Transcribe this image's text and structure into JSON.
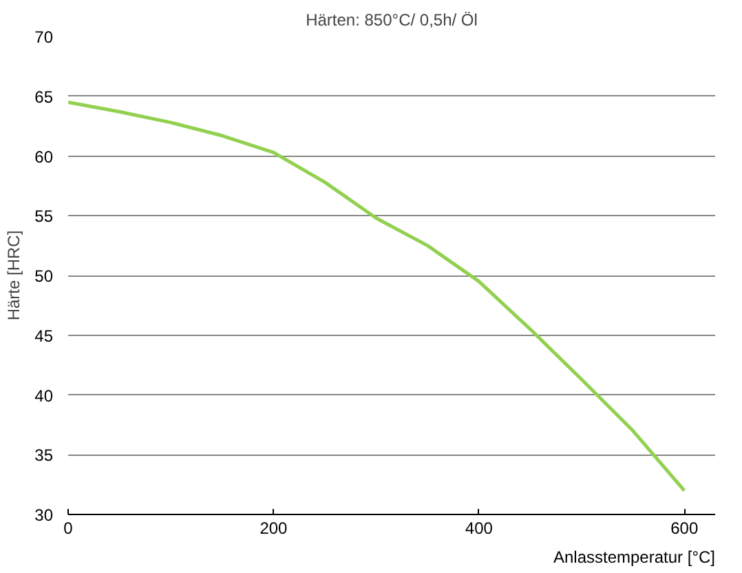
{
  "chart_data": {
    "type": "line",
    "title": "Härten: 850°C/ 0,5h/ Öl",
    "xlabel": "Anlasstemperatur [°C]",
    "ylabel": "Härte [HRC]",
    "series": [
      {
        "color": "#92d050",
        "x": [
          0,
          50,
          100,
          150,
          200,
          250,
          300,
          350,
          400,
          450,
          500,
          550,
          600
        ],
        "values": [
          64.5,
          63.7,
          62.8,
          61.7,
          60.3,
          57.8,
          54.8,
          52.5,
          49.5,
          45.5,
          41.3,
          37,
          32
        ]
      }
    ],
    "xlim": [
      0,
      630
    ],
    "ylim": [
      30,
      70
    ],
    "xticks": [
      0,
      200,
      400,
      600
    ],
    "yticks": [
      30,
      35,
      40,
      45,
      50,
      55,
      60,
      65,
      70
    ],
    "grid": "y",
    "marker": "none",
    "line_style": "solid"
  }
}
